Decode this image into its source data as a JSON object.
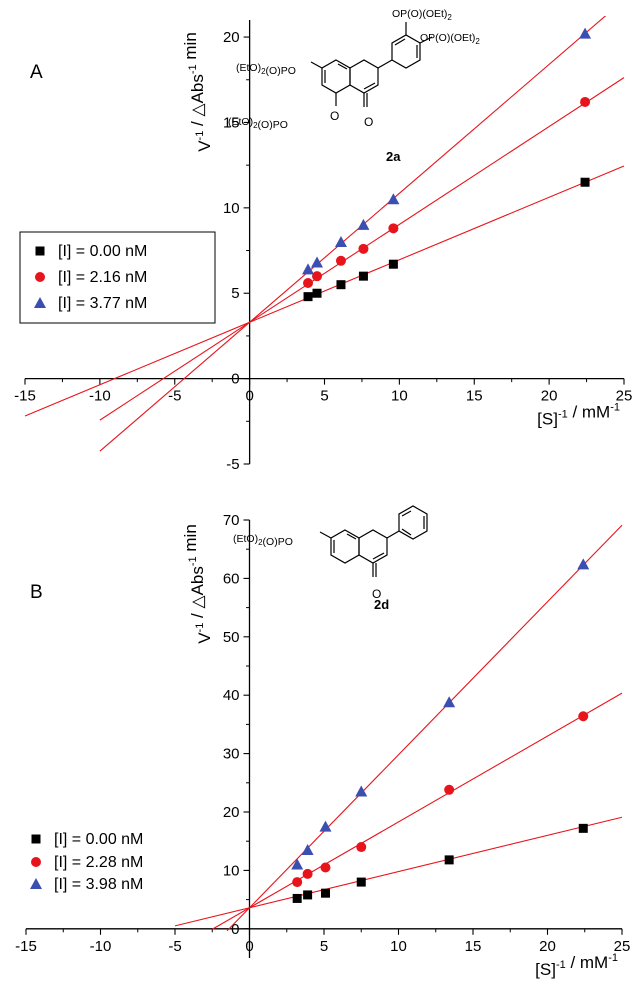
{
  "chart_data": [
    {
      "panel_label": "A",
      "type": "line",
      "xlabel": "[S]^-1 / mM^-1",
      "ylabel": "V^-1 / △Abs^-1 min",
      "xlim": [
        -15,
        25
      ],
      "ylim": [
        -5,
        21
      ],
      "x_ticks": [
        -15,
        -10,
        -5,
        0,
        5,
        10,
        15,
        20,
        25
      ],
      "y_ticks": [
        -5,
        0,
        5,
        10,
        15,
        20
      ],
      "compound": "2a",
      "structure_labels": [
        "OP(O)(OEt)2",
        "OP(O)(OEt)2",
        "(EtO)2(O)PO",
        "(EtO)2(O)PO",
        "O",
        "O"
      ],
      "legend_placement": "left",
      "series": [
        {
          "name": "[I] = 0.00 nM",
          "marker": "square",
          "color": "#000000",
          "x": [
            3.9,
            4.5,
            6.1,
            7.6,
            9.6,
            22.4
          ],
          "y": [
            4.8,
            5.0,
            5.5,
            6.0,
            6.7,
            11.5
          ],
          "fit": {
            "slope": 0.366,
            "intercept": 3.3,
            "x_range": [
              -15,
              25
            ]
          }
        },
        {
          "name": "[I] = 2.16 nM",
          "marker": "circle",
          "color": "#e8141c",
          "x": [
            3.9,
            4.5,
            6.1,
            7.6,
            9.6,
            22.4
          ],
          "y": [
            5.6,
            6.0,
            6.9,
            7.6,
            8.8,
            16.2
          ],
          "fit": {
            "slope": 0.573,
            "intercept": 3.3,
            "x_range": [
              -10,
              25
            ]
          }
        },
        {
          "name": "[I] = 3.77 nM",
          "marker": "triangle",
          "color": "#3b4fb0",
          "x": [
            3.9,
            4.5,
            6.1,
            7.6,
            9.6,
            22.4
          ],
          "y": [
            6.4,
            6.8,
            8.0,
            9.0,
            10.5,
            20.2
          ],
          "fit": {
            "slope": 0.755,
            "intercept": 3.3,
            "x_range": [
              -10,
              25
            ]
          }
        }
      ]
    },
    {
      "panel_label": "B",
      "type": "line",
      "xlabel": "[S]^-1 / mM^-1",
      "ylabel": "V^-1 / △Abs^-1 min",
      "xlim": [
        -15,
        25
      ],
      "ylim": [
        -5,
        70
      ],
      "x_ticks": [
        -15,
        -10,
        -5,
        0,
        5,
        10,
        15,
        20,
        25
      ],
      "y_ticks": [
        0,
        10,
        20,
        30,
        40,
        50,
        60,
        70
      ],
      "compound": "2d",
      "structure_labels": [
        "(EtO)2(O)PO",
        "O",
        "O"
      ],
      "legend_placement": "lower-left",
      "series": [
        {
          "name": "[I] = 0.00 nM",
          "marker": "square",
          "color": "#000000",
          "x": [
            3.2,
            3.9,
            5.1,
            7.5,
            13.4,
            22.4
          ],
          "y": [
            5.2,
            5.8,
            6.1,
            8.0,
            11.8,
            17.2
          ],
          "fit": {
            "slope": 0.62,
            "intercept": 3.6,
            "x_range": [
              -5,
              25
            ]
          }
        },
        {
          "name": "[I] = 2.28 nM",
          "marker": "circle",
          "color": "#e8141c",
          "x": [
            3.2,
            3.9,
            5.1,
            7.5,
            13.4,
            22.4
          ],
          "y": [
            8.0,
            9.4,
            10.5,
            14.0,
            23.8,
            36.4
          ],
          "fit": {
            "slope": 1.47,
            "intercept": 3.6,
            "x_range": [
              -2.5,
              25
            ]
          }
        },
        {
          "name": "[I] = 3.98 nM",
          "marker": "triangle",
          "color": "#3b4fb0",
          "x": [
            3.2,
            3.9,
            5.1,
            7.5,
            13.4,
            22.4
          ],
          "y": [
            11.0,
            13.5,
            17.5,
            23.5,
            38.8,
            62.4
          ],
          "fit": {
            "slope": 2.62,
            "intercept": 3.6,
            "x_range": [
              -1.5,
              25
            ]
          }
        }
      ]
    }
  ]
}
